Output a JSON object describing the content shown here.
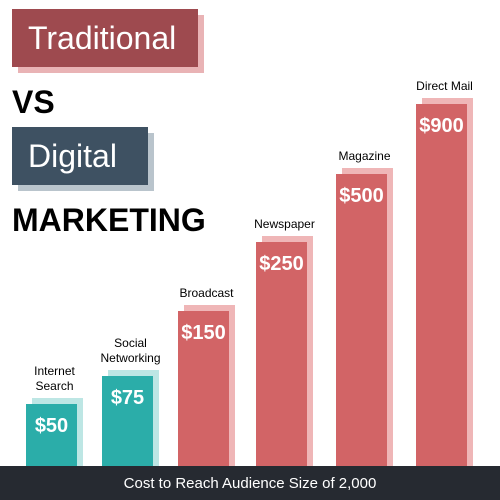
{
  "headline": {
    "line1": "Traditional",
    "line2": "VS",
    "line3": "Digital",
    "line4": "MARKETING"
  },
  "colors": {
    "digital_bar": "#2bada9",
    "digital_shadow": "#bde6e4",
    "traditional_bar": "#d26466",
    "traditional_shadow": "#efb6b7"
  },
  "chart_data": {
    "type": "bar",
    "categories": [
      "Internet Search",
      "Social Networking",
      "Broadcast",
      "Newspaper",
      "Magazine",
      "Direct Mail"
    ],
    "label_lines": [
      [
        "Internet",
        "Search"
      ],
      [
        "Social",
        "Networking"
      ],
      [
        "Broadcast"
      ],
      [
        "Newspaper"
      ],
      [
        "Magazine"
      ],
      [
        "Direct Mail"
      ]
    ],
    "values": [
      50,
      75,
      150,
      250,
      500,
      900
    ],
    "value_labels": [
      "$50",
      "$75",
      "$150",
      "$250",
      "$500",
      "$900"
    ],
    "groups": [
      "digital",
      "digital",
      "traditional",
      "traditional",
      "traditional",
      "traditional"
    ],
    "xlabel": "Cost to Reach Audience Size of 2,000",
    "grid": false
  }
}
